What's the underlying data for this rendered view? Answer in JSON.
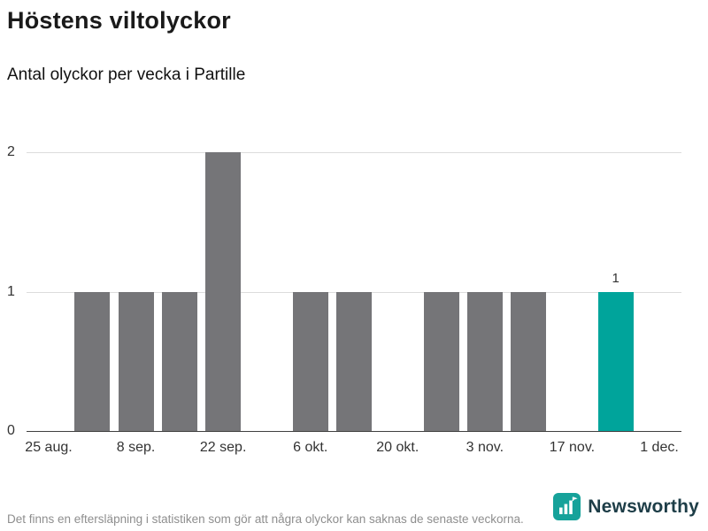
{
  "header": {
    "title": "Höstens viltolyckor",
    "subtitle": "Antal olyckor per vecka i Partille"
  },
  "chart_data": {
    "type": "bar",
    "title": "Höstens viltolyckor",
    "subtitle": "Antal olyckor per vecka i Partille",
    "categories": [
      "25 aug.",
      "1 sep.",
      "8 sep.",
      "15 sep.",
      "22 sep.",
      "29 sep.",
      "6 okt.",
      "13 okt.",
      "20 okt.",
      "27 okt.",
      "3 nov.",
      "10 nov.",
      "17 nov.",
      "24 nov."
    ],
    "values": [
      0,
      1,
      1,
      1,
      2,
      0,
      1,
      1,
      0,
      1,
      1,
      1,
      0,
      1
    ],
    "x_tick_labels": [
      "25 aug.",
      "8 sep.",
      "22 sep.",
      "6 okt.",
      "20 okt.",
      "3 nov.",
      "17 nov.",
      "1 dec."
    ],
    "y_ticks": [
      0,
      1,
      2
    ],
    "ylim": [
      0,
      2
    ],
    "grid": true,
    "legend": "none",
    "bar_color": "#757578",
    "highlight_color": "#00a49b",
    "highlight_index": 13,
    "highlight_value_label": "1"
  },
  "footer": {
    "note": "Det finns en eftersläpning i statistiken som gör att några olyckor kan saknas de senaste veckorna.",
    "brand": "Newsworthy",
    "brand_color": "#16a29a",
    "logo_icon": "bar-chart-flag-icon"
  }
}
